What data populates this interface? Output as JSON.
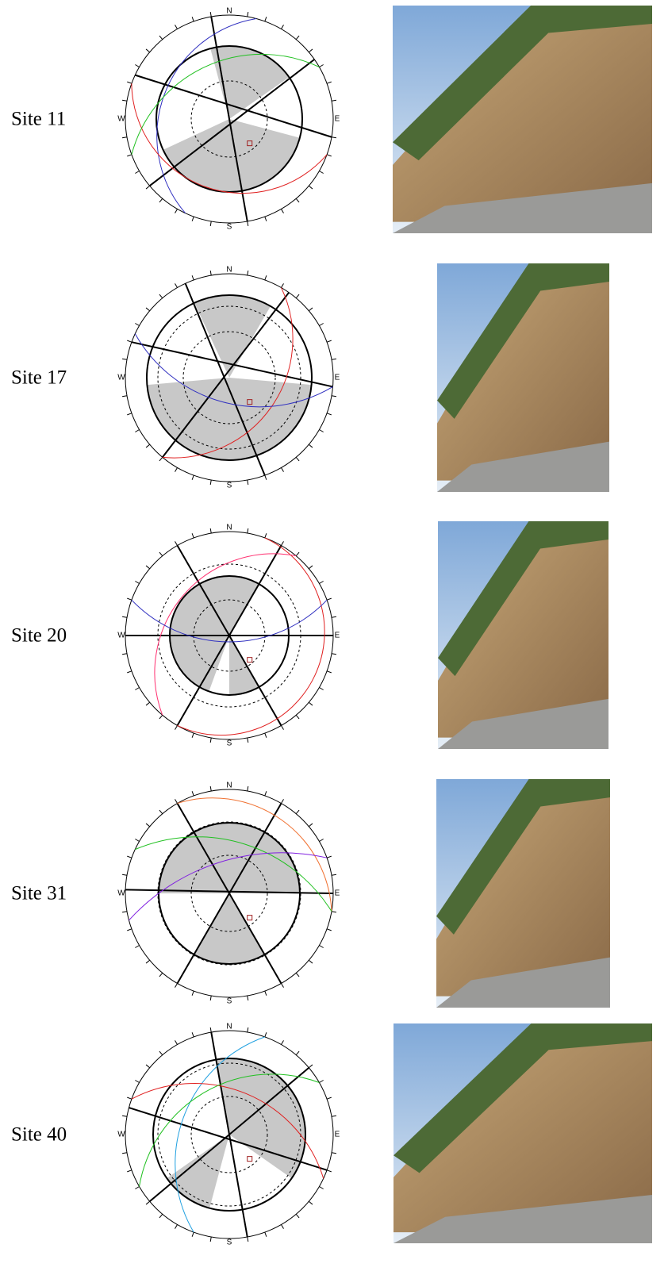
{
  "compass": {
    "n": "N",
    "e": "E",
    "s": "S",
    "w": "W"
  },
  "sites": [
    {
      "label": "Site 11"
    },
    {
      "label": "Site 17"
    },
    {
      "label": "Site 20"
    },
    {
      "label": "Site 31"
    },
    {
      "label": "Site 40"
    }
  ]
}
